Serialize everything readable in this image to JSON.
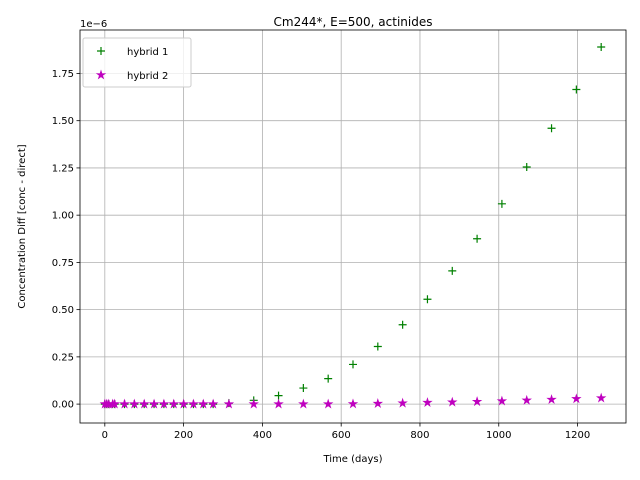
{
  "chart_data": {
    "type": "scatter",
    "title": "Cm244*, E=500, actinides",
    "xlabel": "Time (days)",
    "ylabel": "Concentration Diff [conc - direct]",
    "y_offset_label": "1e−6",
    "xlim": [
      -63,
      1323
    ],
    "ylim": [
      -1e-07,
      1.98e-06
    ],
    "xticks": [
      0,
      200,
      400,
      600,
      800,
      1000,
      1200
    ],
    "xtick_labels": [
      "0",
      "200",
      "400",
      "600",
      "800",
      "1000",
      "1200"
    ],
    "yticks": [
      0,
      2.5e-07,
      5e-07,
      7.5e-07,
      1e-06,
      1.25e-06,
      1.5e-06,
      1.75e-06
    ],
    "ytick_labels": [
      "0.00",
      "0.25",
      "0.50",
      "0.75",
      "1.00",
      "1.25",
      "1.50",
      "1.75"
    ],
    "grid": true,
    "legend_position": "upper-left",
    "series": [
      {
        "name": "hybrid 1",
        "marker": "plus",
        "color": "#008000",
        "x": [
          0,
          5,
          10,
          20,
          25,
          50,
          75,
          100,
          125,
          150,
          175,
          200,
          225,
          250,
          275,
          315,
          378,
          441,
          504,
          567,
          630,
          693,
          756,
          819,
          882,
          945,
          1008,
          1071,
          1134,
          1197,
          1260
        ],
        "y": [
          0,
          0,
          0,
          0,
          0,
          0,
          0,
          0,
          0,
          0,
          0,
          0,
          0,
          0,
          0,
          5e-09,
          2e-08,
          4.5e-08,
          8.5e-08,
          1.35e-07,
          2.1e-07,
          3.05e-07,
          4.2e-07,
          5.55e-07,
          7.05e-07,
          8.75e-07,
          1.06e-06,
          1.255e-06,
          1.46e-06,
          1.665e-06,
          1.89e-06
        ]
      },
      {
        "name": "hybrid 2",
        "marker": "star",
        "color": "#bf00bf",
        "x": [
          0,
          5,
          10,
          20,
          25,
          50,
          75,
          100,
          125,
          150,
          175,
          200,
          225,
          250,
          275,
          315,
          378,
          441,
          504,
          567,
          630,
          693,
          756,
          819,
          882,
          945,
          1008,
          1071,
          1134,
          1197,
          1260
        ],
        "y": [
          0,
          0,
          0,
          0,
          0,
          0,
          0,
          0,
          0,
          0,
          0,
          0,
          0,
          0,
          0,
          0,
          0,
          0,
          0,
          0,
          1e-09,
          3e-09,
          5e-09,
          8e-09,
          1e-08,
          1.3e-08,
          1.6e-08,
          2e-08,
          2.4e-08,
          2.8e-08,
          3.2e-08
        ]
      }
    ]
  }
}
